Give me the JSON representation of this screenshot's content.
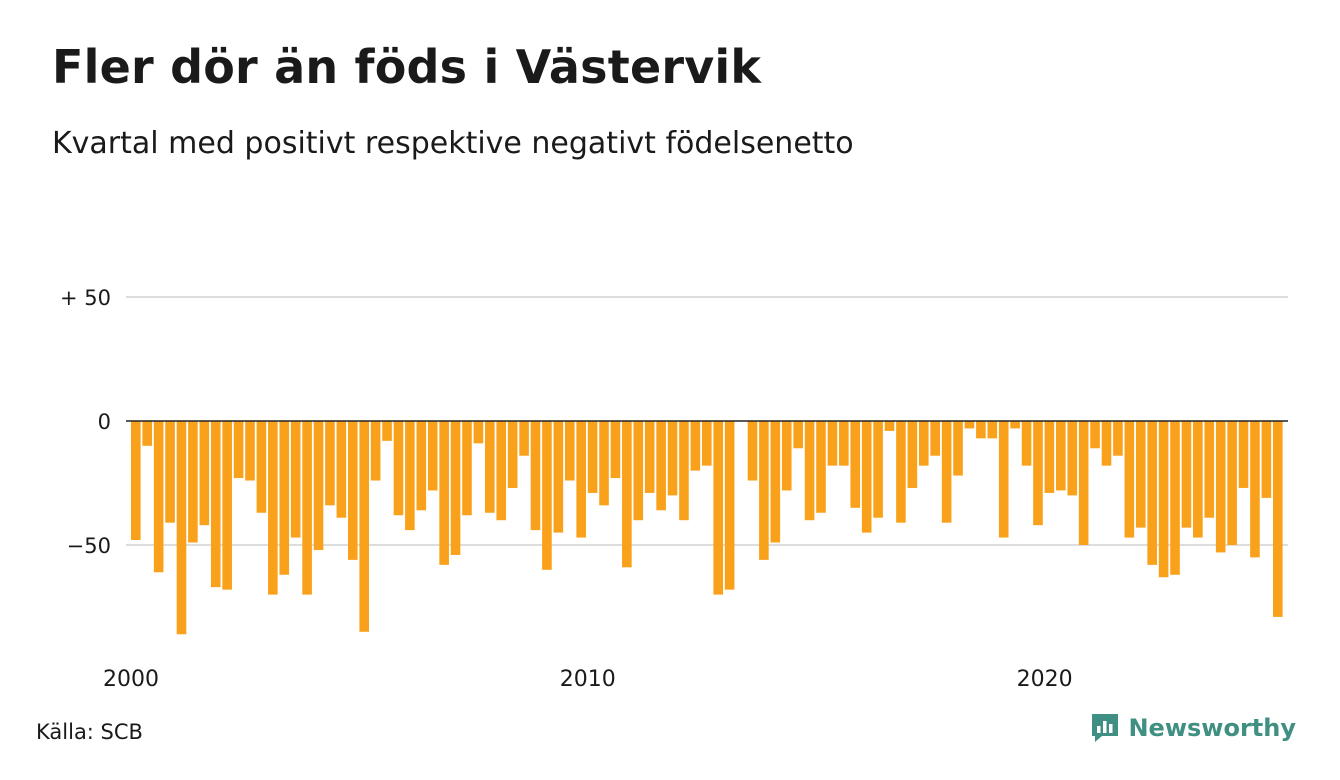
{
  "title": "Fler dör än föds i Västervik",
  "subtitle": "Kvartal med positivt respektive negativt födelsenetto",
  "source": "Källa: SCB",
  "brand": {
    "name": "Newsworthy",
    "icon": "newsworthy-logo-icon"
  },
  "colors": {
    "bar": "#f9a11b",
    "grid": "#dddddd",
    "zero_line": "#222222",
    "brand": "#3f8f82"
  },
  "chart_data": {
    "type": "bar",
    "ylim": [
      -85,
      50
    ],
    "yticks": [
      {
        "value": 50,
        "label": "+ 50"
      },
      {
        "value": 0,
        "label": "0"
      },
      {
        "value": -50,
        "label": "−50"
      }
    ],
    "xticks": [
      {
        "index": 0,
        "label": "2000"
      },
      {
        "index": 40,
        "label": "2010"
      },
      {
        "index": 80,
        "label": "2020"
      }
    ],
    "grid": true,
    "values": [
      -48,
      -10,
      -61,
      -41,
      -86,
      -49,
      -42,
      -67,
      -68,
      -23,
      -24,
      -37,
      -70,
      -62,
      -47,
      -70,
      -52,
      -34,
      -39,
      -56,
      -85,
      -24,
      -8,
      -38,
      -44,
      -36,
      -28,
      -58,
      -54,
      -38,
      -9,
      -37,
      -40,
      -27,
      -14,
      -44,
      -60,
      -45,
      -24,
      -47,
      -29,
      -34,
      -23,
      -59,
      -40,
      -29,
      -36,
      -30,
      -40,
      -20,
      -18,
      -70,
      -68,
      0,
      -24,
      -56,
      -49,
      -28,
      -11,
      -40,
      -37,
      -18,
      -18,
      -35,
      -45,
      -39,
      -4,
      -41,
      -27,
      -18,
      -14,
      -41,
      -22,
      -3,
      -7,
      -7,
      -47,
      -3,
      -18,
      -42,
      -29,
      -28,
      -30,
      -50,
      -11,
      -18,
      -14,
      -47,
      -43,
      -58,
      -63,
      -62,
      -43,
      -47,
      -39,
      -53,
      -50,
      -27,
      -55,
      -31,
      -79
    ]
  }
}
